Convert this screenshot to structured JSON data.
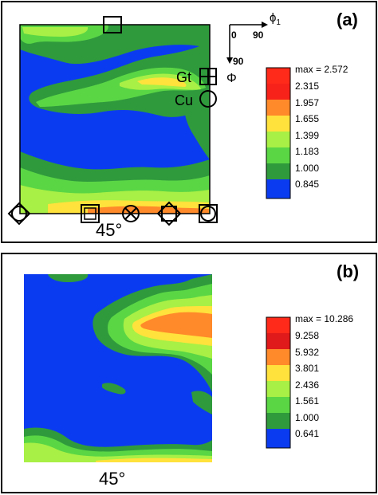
{
  "panels": [
    {
      "tag": "(a)",
      "angle_label": "45°",
      "axes": {
        "phi1_label": "ϕ1",
        "phi1_symbol": "ϕ",
        "phi1_sub": "1",
        "origin": "0",
        "phi1_max": "90",
        "Phi_max": "90",
        "Phi_label": "Φ"
      },
      "orientations": {
        "goss": "Gt",
        "copper": "Cu"
      },
      "legend": {
        "max_label": "max = 2.572",
        "levels": [
          "2.315",
          "1.957",
          "1.655",
          "1.399",
          "1.183",
          "1.000",
          "0.845"
        ],
        "colors": [
          "#ff2a1a",
          "#f7221a",
          "#ff8a2a",
          "#ffe23c",
          "#a8f045",
          "#5ad645",
          "#2f9a3c",
          "#0b3bf0"
        ]
      }
    },
    {
      "tag": "(b)",
      "angle_label": "45°",
      "legend": {
        "max_label": "max = 10.286",
        "levels": [
          "9.258",
          "5.932",
          "3.801",
          "2.436",
          "1.561",
          "1.000",
          "0.641"
        ],
        "colors": [
          "#ff2a1a",
          "#e01a1a",
          "#ff8a2a",
          "#ffe23c",
          "#a8f045",
          "#5ad645",
          "#2f9a3c",
          "#0b3bf0"
        ]
      }
    }
  ]
}
